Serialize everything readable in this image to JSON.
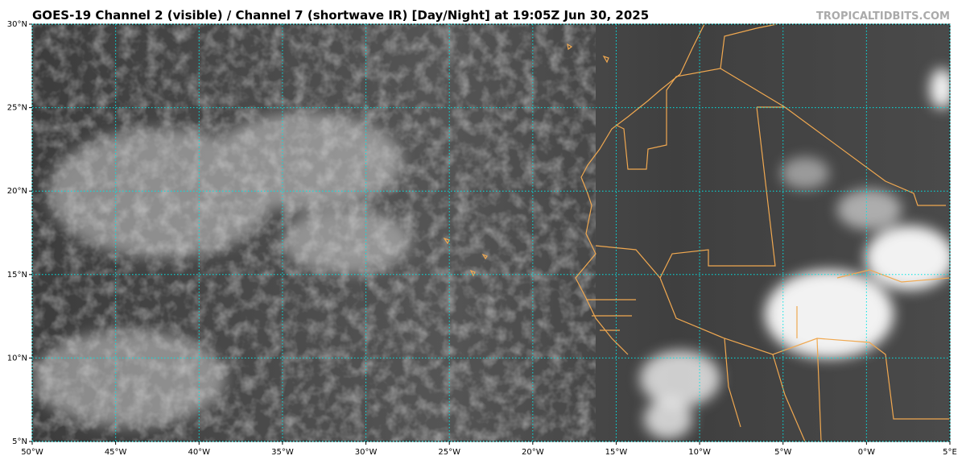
{
  "title": "GOES-19 Channel 2 (visible) / Channel 7 (shortwave IR) [Day/Night] at 19:05Z Jun 30, 2025",
  "credit": "TROPICALTIDBITS.COM",
  "map": {
    "lon_ticks": [
      {
        "value": -50,
        "label": "50°W"
      },
      {
        "value": -45,
        "label": "45°W"
      },
      {
        "value": -40,
        "label": "40°W"
      },
      {
        "value": -35,
        "label": "35°W"
      },
      {
        "value": -30,
        "label": "30°W"
      },
      {
        "value": -25,
        "label": "25°W"
      },
      {
        "value": -20,
        "label": "20°W"
      },
      {
        "value": -15,
        "label": "15°W"
      },
      {
        "value": -10,
        "label": "10°W"
      },
      {
        "value": -5,
        "label": "5°W"
      },
      {
        "value": 0,
        "label": "0°W"
      },
      {
        "value": 5,
        "label": "5°E"
      }
    ],
    "lat_ticks": [
      {
        "value": 5,
        "label": "5°N"
      },
      {
        "value": 10,
        "label": "10°N"
      },
      {
        "value": 15,
        "label": "15°N"
      },
      {
        "value": 20,
        "label": "20°N"
      },
      {
        "value": 25,
        "label": "25°N"
      },
      {
        "value": 30,
        "label": "30°N"
      }
    ]
  }
}
